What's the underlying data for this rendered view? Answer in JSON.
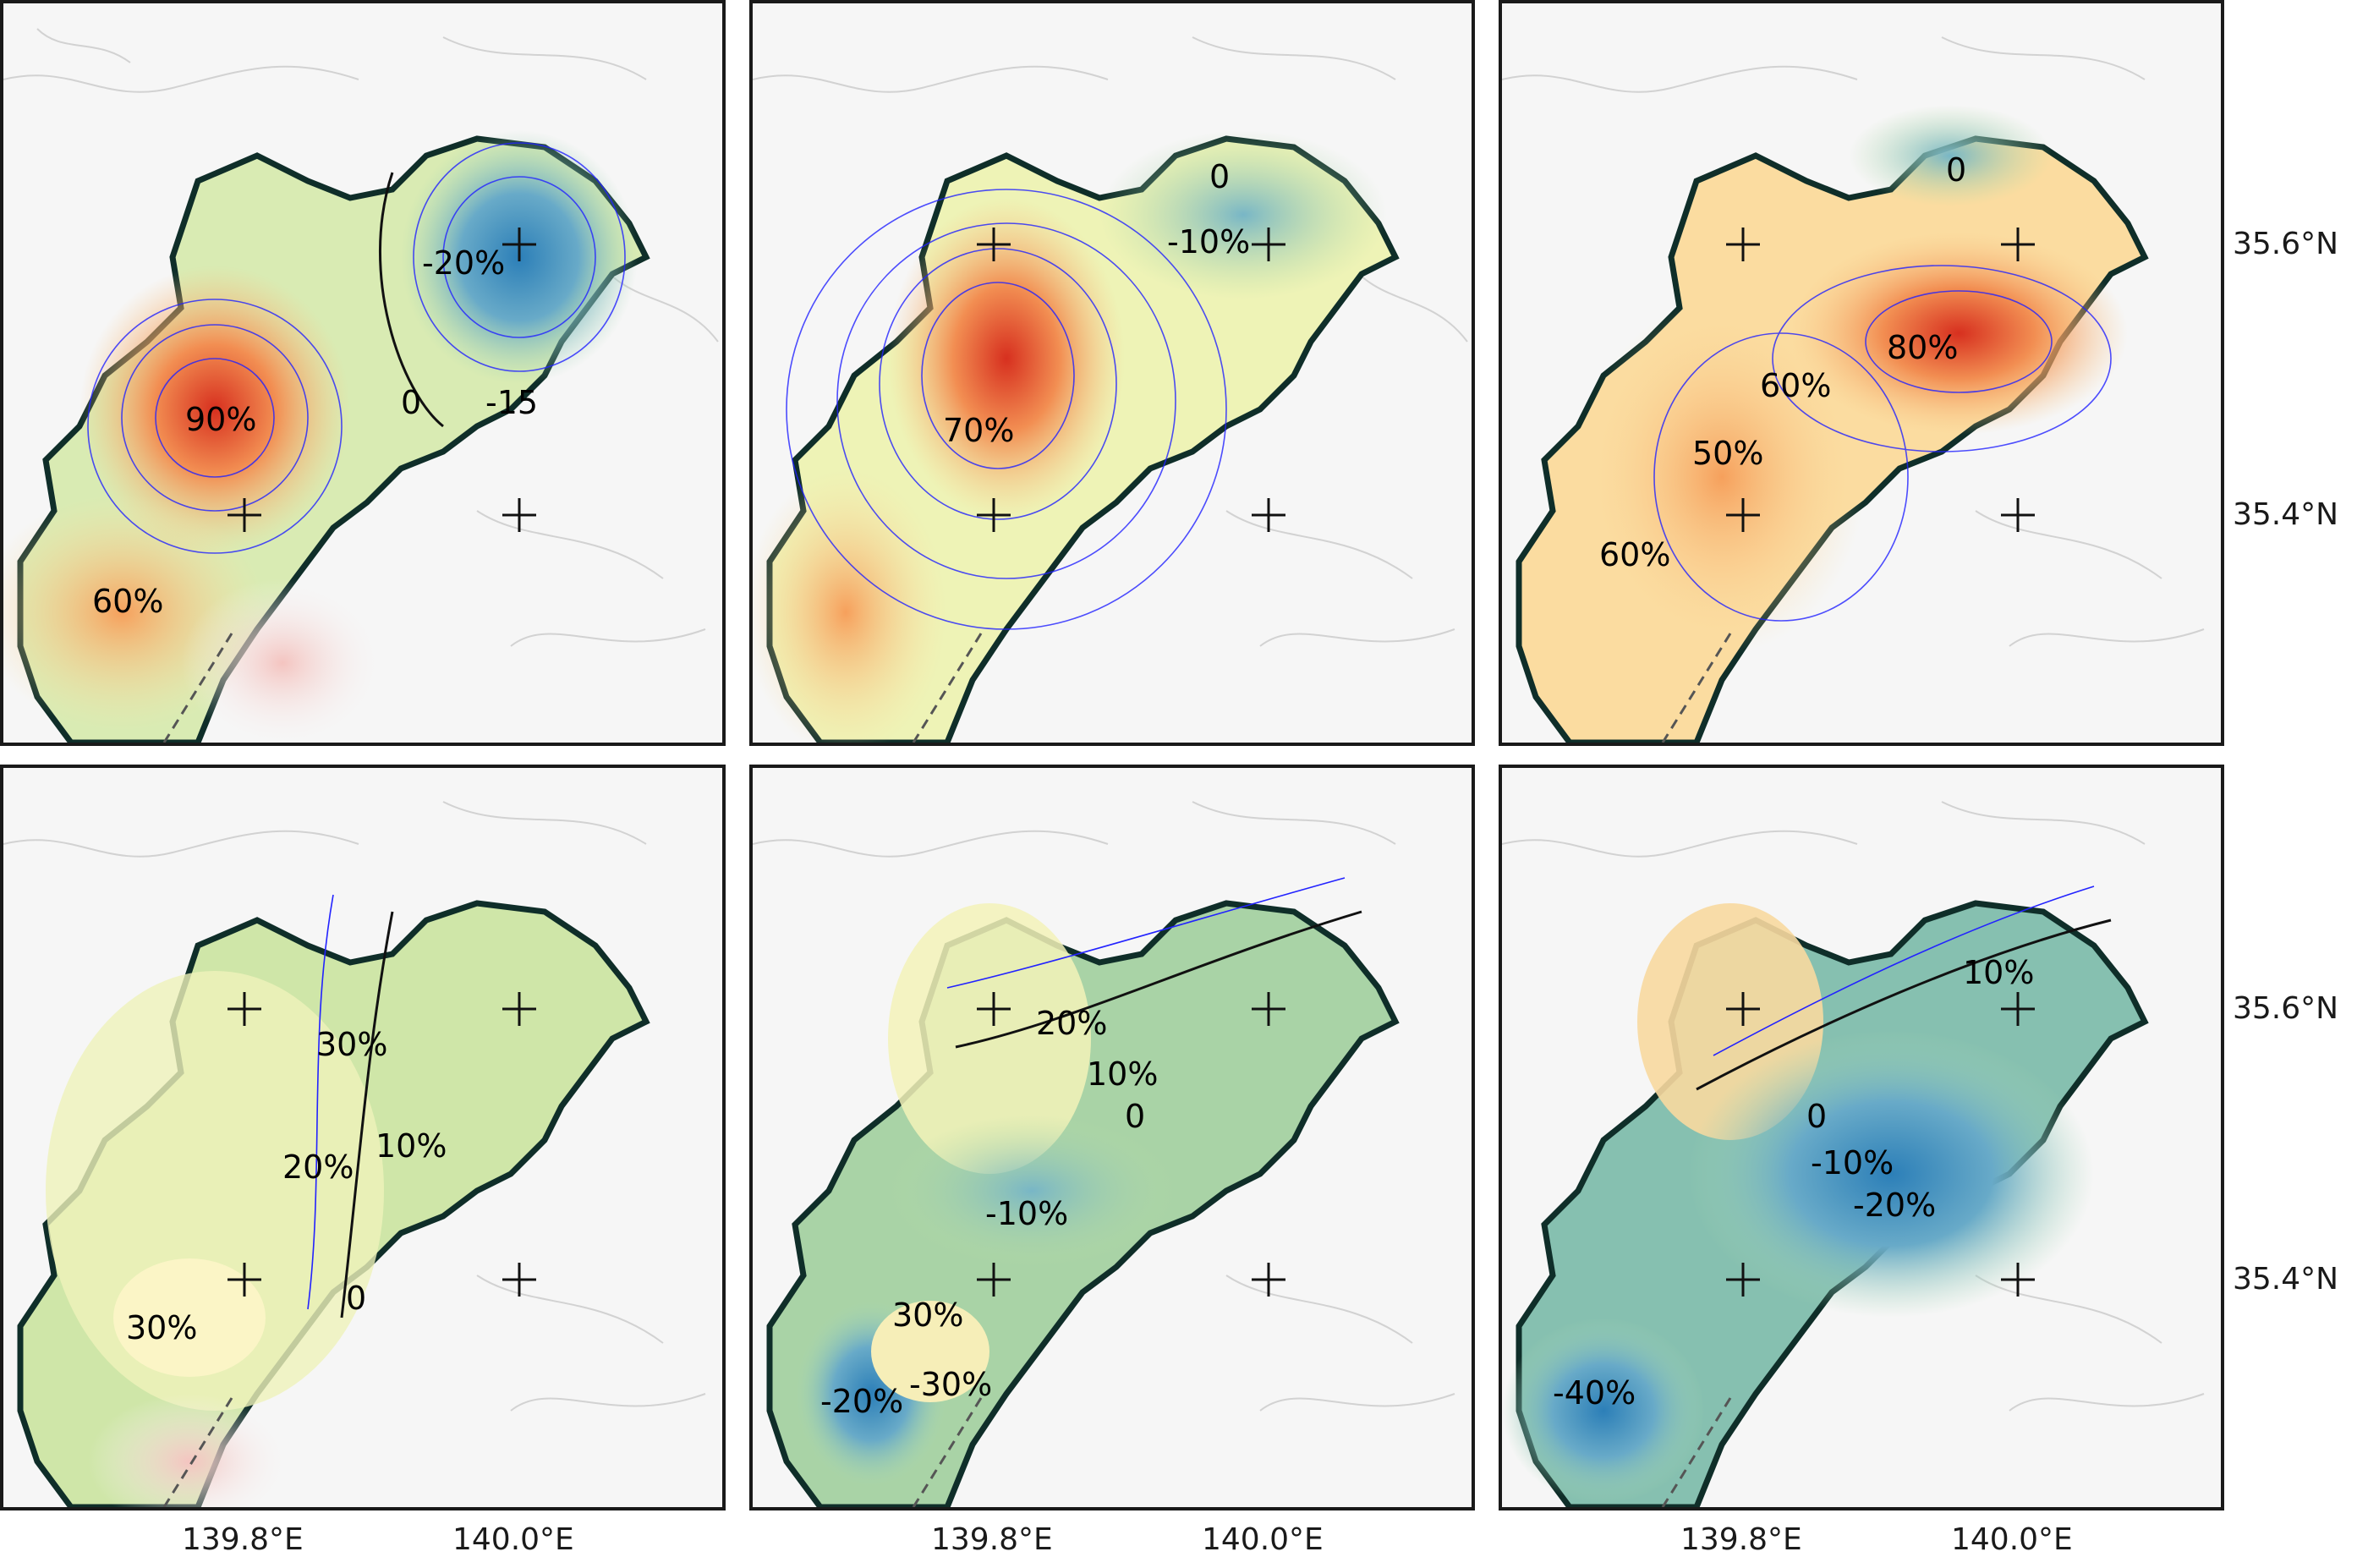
{
  "panels": [
    {
      "id": "p1",
      "labels": [
        "-20%",
        "0",
        "-15",
        "90%",
        "60%"
      ]
    },
    {
      "id": "p2",
      "labels": [
        "0",
        "-10%",
        "70%"
      ]
    },
    {
      "id": "p3",
      "labels": [
        "0",
        "80%",
        "60%",
        "50%",
        "60%"
      ]
    },
    {
      "id": "p4",
      "labels": [
        "30%",
        "20%",
        "10%",
        "30%",
        "0"
      ]
    },
    {
      "id": "p5",
      "labels": [
        "20%",
        "10%",
        "0",
        "-10%",
        "30%",
        "-20%",
        "-30%"
      ]
    },
    {
      "id": "p6",
      "labels": [
        "10%",
        "0",
        "-10%",
        "-20%",
        "-40%"
      ]
    }
  ],
  "axes": {
    "lon_ticks": [
      "139.8°E",
      "140.0°E"
    ],
    "lat_ticks": [
      "35.6°N",
      "35.4°N"
    ]
  },
  "colors": {
    "warm": "#e8502f",
    "warm_mid": "#f9b46b",
    "neutral": "#fbf8c4",
    "cool_mid": "#b9dea3",
    "cool": "#3b8fbd",
    "coast": "#0f2e29",
    "contour": "#2222ff"
  }
}
